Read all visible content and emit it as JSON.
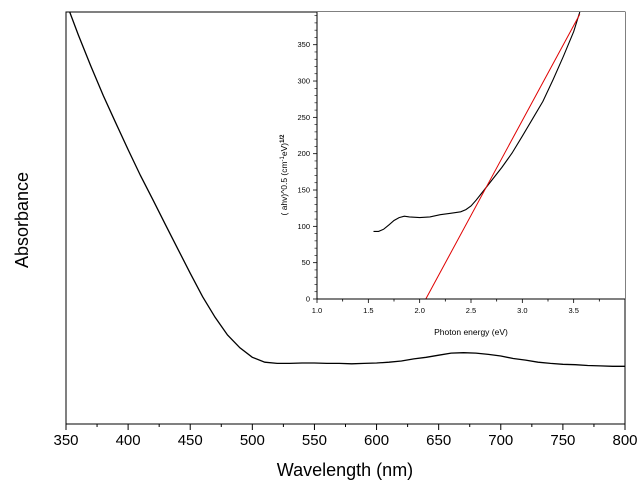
{
  "chart_data": [
    {
      "type": "line",
      "title": "",
      "xlabel": "Wavelength (nm)",
      "ylabel": "Absorbance",
      "xlim": [
        350,
        800
      ],
      "x_ticks": [
        350,
        400,
        450,
        500,
        550,
        600,
        650,
        700,
        750,
        800
      ],
      "y_ticks_labeled": false,
      "grid": false,
      "legend": "none",
      "colors": {
        "line": "#000000"
      },
      "series": [
        {
          "x": [
            353,
            360,
            370,
            380,
            390,
            400,
            410,
            420,
            430,
            440,
            450,
            460,
            470,
            480,
            490,
            500,
            510,
            520,
            530,
            540,
            550,
            560,
            570,
            580,
            590,
            600,
            610,
            620,
            630,
            640,
            650,
            660,
            670,
            680,
            690,
            700,
            710,
            720,
            730,
            740,
            750,
            760,
            770,
            780,
            790,
            800
          ],
          "y": [
            1.0,
            0.944,
            0.869,
            0.797,
            0.731,
            0.666,
            0.603,
            0.544,
            0.484,
            0.425,
            0.366,
            0.309,
            0.259,
            0.216,
            0.185,
            0.162,
            0.15,
            0.147,
            0.147,
            0.148,
            0.148,
            0.147,
            0.147,
            0.146,
            0.147,
            0.148,
            0.15,
            0.153,
            0.158,
            0.162,
            0.167,
            0.172,
            0.173,
            0.172,
            0.169,
            0.165,
            0.159,
            0.155,
            0.15,
            0.147,
            0.145,
            0.144,
            0.142,
            0.141,
            0.14,
            0.14
          ]
        }
      ]
    },
    {
      "type": "line",
      "title": "",
      "xlabel": "Photon energy (eV)",
      "ylabel_main": "( ahv)^0.5 (cm",
      "ylabel_sup1": "-1",
      "ylabel_mid": "eV)",
      "ylabel_sup2": "1/2",
      "xlim": [
        1.0,
        4.0
      ],
      "ylim": [
        0,
        395
      ],
      "x_ticks": [
        "1.0",
        "1.5",
        "2.0",
        "2.5",
        "3.0",
        "3.5"
      ],
      "y_ticks": [
        "0",
        "50",
        "100",
        "150",
        "200",
        "250",
        "300",
        "350"
      ],
      "grid": false,
      "legend": "none",
      "colors": {
        "data": "#000000",
        "fit": "#e00000"
      },
      "series": [
        {
          "x": [
            1.55,
            1.6,
            1.65,
            1.7,
            1.75,
            1.8,
            1.85,
            1.9,
            2.0,
            2.1,
            2.2,
            2.3,
            2.4,
            2.45,
            2.5,
            2.55,
            2.6,
            2.65,
            2.7,
            2.8,
            2.9,
            3.0,
            3.1,
            3.2,
            3.3,
            3.4,
            3.5,
            3.56
          ],
          "y": [
            93,
            93,
            96,
            102,
            108,
            112,
            114,
            113,
            112,
            113,
            116,
            118,
            120,
            123,
            128,
            136,
            145,
            154,
            163,
            181,
            201,
            224,
            248,
            272,
            302,
            334,
            368,
            395
          ]
        },
        {
          "x": [
            2.06,
            3.56
          ],
          "y": [
            0,
            392
          ]
        }
      ]
    }
  ]
}
